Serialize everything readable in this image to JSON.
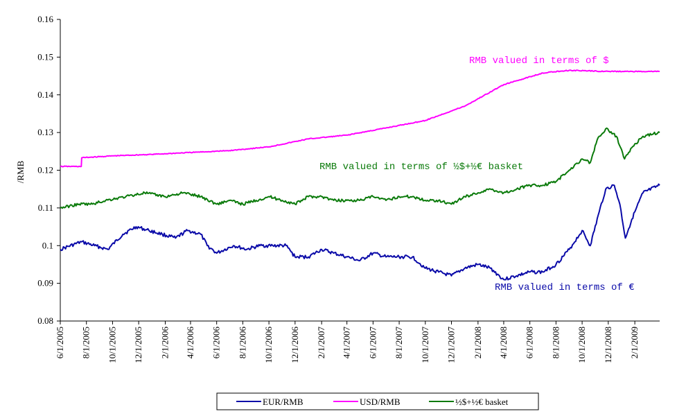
{
  "chart_data": {
    "type": "line",
    "title": "",
    "xlabel": "",
    "ylabel": "/RMB",
    "ylim": [
      0.08,
      0.16
    ],
    "yticks": [
      "0.08",
      "0.09",
      "0.1",
      "0.11",
      "0.12",
      "0.13",
      "0.14",
      "0.15",
      "0.16"
    ],
    "ytick_values": [
      0.08,
      0.09,
      0.1,
      0.11,
      0.12,
      0.13,
      0.14,
      0.15,
      0.16
    ],
    "xrange": [
      "6/1/2005",
      "3/31/2009"
    ],
    "xticks": [
      "6/1/2005",
      "8/1/2005",
      "10/1/2005",
      "12/1/2005",
      "2/1/2006",
      "4/1/2006",
      "6/1/2006",
      "8/1/2006",
      "10/1/2006",
      "12/1/2006",
      "2/1/2007",
      "4/1/2007",
      "6/1/2007",
      "8/1/2007",
      "10/1/2007",
      "12/1/2007",
      "2/1/2008",
      "4/1/2008",
      "6/1/2008",
      "8/1/2008",
      "10/1/2008",
      "12/1/2008",
      "2/1/2009"
    ],
    "grid": false,
    "legend_position": "bottom",
    "series": [
      {
        "name": "EUR/RMB",
        "color": "#0a0aa8",
        "points": [
          [
            "6/1/2005",
            0.099
          ],
          [
            "7/20/2005",
            0.101
          ],
          [
            "8/20/2005",
            0.1
          ],
          [
            "9/20/2005",
            0.099
          ],
          [
            "10/25/2005",
            0.103
          ],
          [
            "11/25/2005",
            0.105
          ],
          [
            "12/25/2005",
            0.104
          ],
          [
            "1/25/2006",
            0.103
          ],
          [
            "2/25/2006",
            0.102
          ],
          [
            "3/25/2006",
            0.104
          ],
          [
            "4/25/2006",
            0.103
          ],
          [
            "5/10/2006",
            0.1
          ],
          [
            "6/1/2006",
            0.098
          ],
          [
            "7/10/2006",
            0.1
          ],
          [
            "8/10/2006",
            0.099
          ],
          [
            "9/10/2006",
            0.1
          ],
          [
            "10/10/2006",
            0.1
          ],
          [
            "11/10/2006",
            0.1
          ],
          [
            "12/1/2006",
            0.097
          ],
          [
            "1/1/2007",
            0.097
          ],
          [
            "2/1/2007",
            0.099
          ],
          [
            "3/1/2007",
            0.098
          ],
          [
            "4/1/2007",
            0.097
          ],
          [
            "5/1/2007",
            0.096
          ],
          [
            "6/1/2007",
            0.098
          ],
          [
            "7/1/2007",
            0.097
          ],
          [
            "8/1/2007",
            0.097
          ],
          [
            "9/1/2007",
            0.097
          ],
          [
            "10/1/2007",
            0.094
          ],
          [
            "11/1/2007",
            0.093
          ],
          [
            "12/1/2007",
            0.092
          ],
          [
            "1/1/2008",
            0.094
          ],
          [
            "2/1/2008",
            0.095
          ],
          [
            "3/1/2008",
            0.094
          ],
          [
            "4/1/2008",
            0.091
          ],
          [
            "5/1/2008",
            0.092
          ],
          [
            "6/1/2008",
            0.093
          ],
          [
            "7/1/2008",
            0.093
          ],
          [
            "8/1/2008",
            0.095
          ],
          [
            "9/1/2008",
            0.099
          ],
          [
            "10/1/2008",
            0.104
          ],
          [
            "10/20/2008",
            0.1
          ],
          [
            "11/10/2008",
            0.109
          ],
          [
            "11/25/2008",
            0.115
          ],
          [
            "12/15/2008",
            0.116
          ],
          [
            "12/28/2008",
            0.111
          ],
          [
            "1/10/2009",
            0.102
          ],
          [
            "1/25/2009",
            0.107
          ],
          [
            "2/20/2009",
            0.114
          ],
          [
            "3/31/2009",
            0.116
          ]
        ]
      },
      {
        "name": "USD/RMB",
        "color": "#ff00ff",
        "points": [
          [
            "6/1/2005",
            0.121
          ],
          [
            "7/20/2005",
            0.121
          ],
          [
            "7/21/2005",
            0.1233
          ],
          [
            "10/1/2005",
            0.1238
          ],
          [
            "1/1/2006",
            0.1242
          ],
          [
            "4/1/2006",
            0.1247
          ],
          [
            "7/1/2006",
            0.1252
          ],
          [
            "10/1/2006",
            0.1262
          ],
          [
            "1/1/2007",
            0.1283
          ],
          [
            "4/1/2007",
            0.1293
          ],
          [
            "7/1/2007",
            0.1312
          ],
          [
            "10/1/2007",
            0.1332
          ],
          [
            "1/1/2008",
            0.137
          ],
          [
            "4/1/2008",
            0.1427
          ],
          [
            "7/1/2008",
            0.1458
          ],
          [
            "9/1/2008",
            0.1465
          ],
          [
            "12/1/2008",
            0.1462
          ],
          [
            "3/31/2009",
            0.1462
          ]
        ]
      },
      {
        "name": "½$+½€  basket",
        "color": "#0a7a0a",
        "points": [
          [
            "6/1/2005",
            0.11
          ],
          [
            "7/15/2005",
            0.111
          ],
          [
            "8/15/2005",
            0.111
          ],
          [
            "9/15/2005",
            0.112
          ],
          [
            "11/1/2005",
            0.113
          ],
          [
            "12/15/2005",
            0.114
          ],
          [
            "2/1/2006",
            0.113
          ],
          [
            "3/15/2006",
            0.114
          ],
          [
            "4/25/2006",
            0.113
          ],
          [
            "6/1/2006",
            0.111
          ],
          [
            "7/1/2006",
            0.112
          ],
          [
            "8/1/2006",
            0.111
          ],
          [
            "9/1/2006",
            0.112
          ],
          [
            "10/1/2006",
            0.113
          ],
          [
            "11/1/2006",
            0.112
          ],
          [
            "12/1/2006",
            0.111
          ],
          [
            "1/1/2007",
            0.113
          ],
          [
            "2/1/2007",
            0.113
          ],
          [
            "3/1/2007",
            0.112
          ],
          [
            "4/1/2007",
            0.112
          ],
          [
            "5/1/2007",
            0.112
          ],
          [
            "6/1/2007",
            0.113
          ],
          [
            "7/1/2007",
            0.112
          ],
          [
            "8/1/2007",
            0.113
          ],
          [
            "9/1/2007",
            0.113
          ],
          [
            "10/1/2007",
            0.112
          ],
          [
            "11/1/2007",
            0.112
          ],
          [
            "12/1/2007",
            0.111
          ],
          [
            "1/1/2008",
            0.113
          ],
          [
            "2/1/2008",
            0.114
          ],
          [
            "3/1/2008",
            0.115
          ],
          [
            "4/1/2008",
            0.114
          ],
          [
            "5/1/2008",
            0.115
          ],
          [
            "6/1/2008",
            0.116
          ],
          [
            "7/1/2008",
            0.116
          ],
          [
            "8/1/2008",
            0.117
          ],
          [
            "9/1/2008",
            0.12
          ],
          [
            "10/1/2008",
            0.123
          ],
          [
            "10/20/2008",
            0.122
          ],
          [
            "11/5/2008",
            0.128
          ],
          [
            "11/25/2008",
            0.131
          ],
          [
            "12/20/2008",
            0.129
          ],
          [
            "1/8/2009",
            0.123
          ],
          [
            "1/25/2009",
            0.126
          ],
          [
            "2/20/2009",
            0.129
          ],
          [
            "3/31/2009",
            0.13
          ]
        ]
      }
    ],
    "annotations": [
      {
        "text": "RMB valued in terms of $",
        "color": "#ff00ff",
        "series": "USD/RMB"
      },
      {
        "text": "RMB valued in terms of ½$+½€  basket",
        "color": "#0a7a0a",
        "series": "½$+½€  basket"
      },
      {
        "text": "RMB valued in terms of €",
        "color": "#0a0aa8",
        "series": "EUR/RMB"
      }
    ],
    "legend": [
      "EUR/RMB",
      "USD/RMB",
      "½$+½€  basket"
    ]
  }
}
